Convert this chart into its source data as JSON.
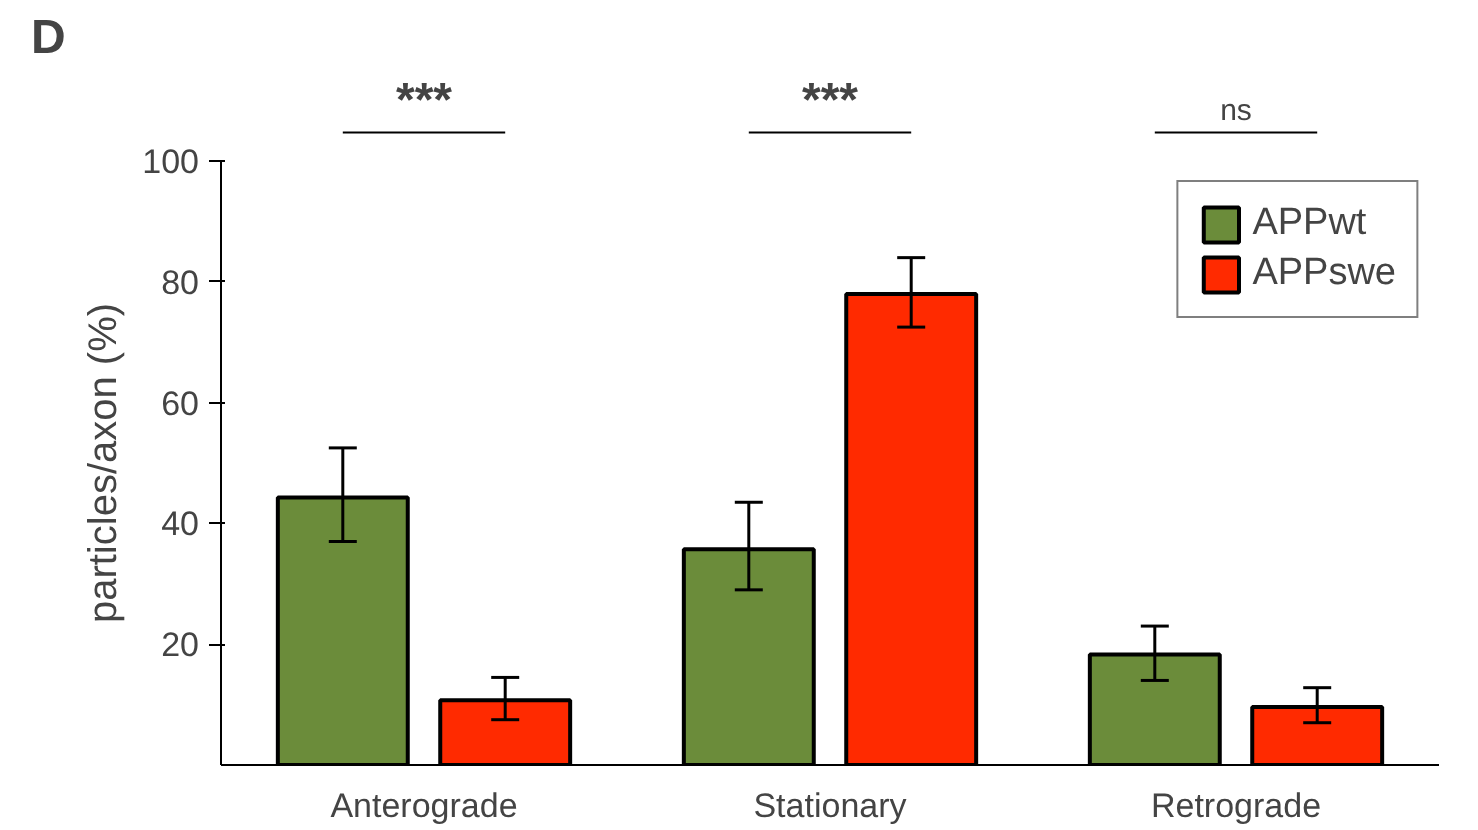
{
  "chart_data": {
    "type": "bar",
    "ylabel": "particles/axon (%)",
    "categories": [
      "Anterograde",
      "Stationary",
      "Retrograde"
    ],
    "series": [
      {
        "name": "APPwt",
        "color": "#6b8c3a",
        "values": [
          44.3,
          35.7,
          18.3
        ],
        "errors": [
          [
            37,
            52.5
          ],
          [
            29,
            43.5
          ],
          [
            14,
            23
          ]
        ]
      },
      {
        "name": "APPswe",
        "color": "#ff2a00",
        "values": [
          10.7,
          78,
          9.6
        ],
        "errors": [
          [
            7.5,
            14.5
          ],
          [
            72.5,
            84
          ],
          [
            7,
            12.8
          ]
        ]
      }
    ],
    "ylim": [
      0,
      100
    ],
    "yticks": [
      20,
      40,
      60,
      80,
      100
    ],
    "grid": false,
    "legend": "top right",
    "annotations": [
      "D",
      "***",
      "***",
      "ns"
    ]
  }
}
